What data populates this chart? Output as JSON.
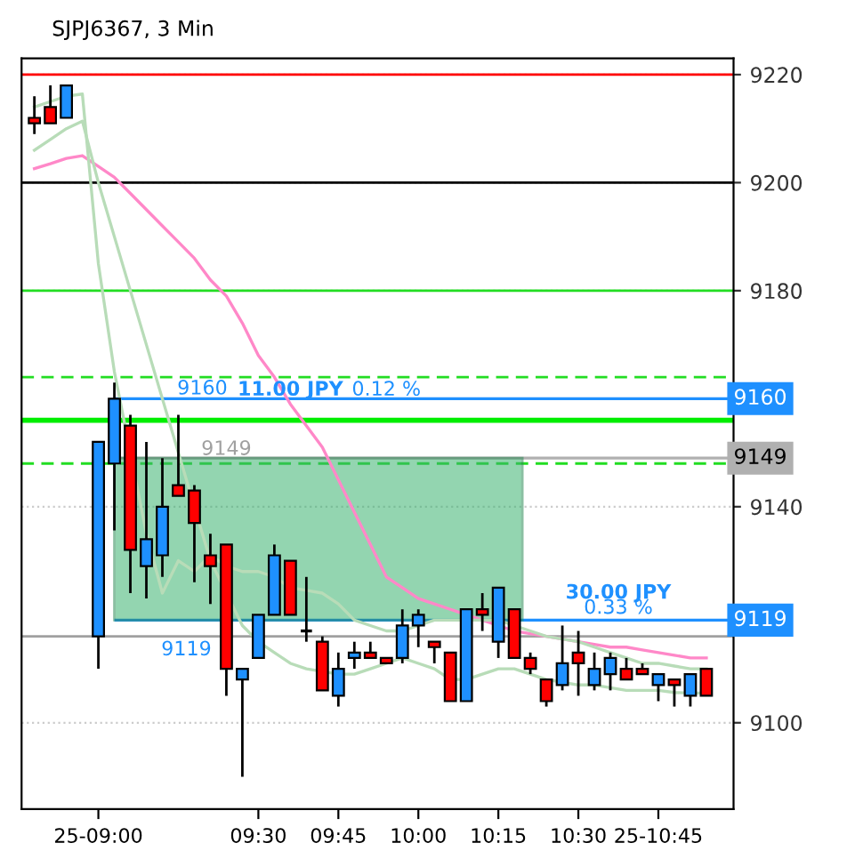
{
  "chart_data": {
    "type": "candlestick",
    "title": "SJPJ6367, 3 Min",
    "categories": [
      null,
      null,
      null,
      null,
      "25-09:00",
      null,
      null,
      null,
      null,
      null,
      null,
      null,
      null,
      null,
      "09:30",
      null,
      null,
      null,
      null,
      "09:45",
      null,
      null,
      null,
      null,
      "10:00",
      null,
      null,
      null,
      null,
      "10:15",
      null,
      null,
      null,
      null,
      "10:30",
      null,
      null,
      null,
      null,
      "25-10:45",
      null,
      null,
      null
    ],
    "ohlc": [
      [
        9212,
        9216,
        9209,
        9211
      ],
      [
        9214,
        9218,
        9211,
        9211
      ],
      [
        9212,
        9218,
        9212,
        9218
      ],
      null,
      [
        9116,
        9152,
        9110,
        9152
      ],
      [
        9148,
        9163,
        9135.6,
        9160
      ],
      [
        9155,
        9157,
        9124,
        9132
      ],
      [
        9129,
        9152,
        9123,
        9134
      ],
      [
        9131,
        9149,
        9127,
        9140
      ],
      [
        9144,
        9157,
        9142,
        9142
      ],
      [
        9143,
        9144,
        9126,
        9137
      ],
      [
        9131,
        9135,
        9122,
        9129
      ],
      [
        9133,
        9133,
        9105,
        9110
      ],
      [
        9108,
        9110,
        9090,
        9110
      ],
      [
        9112,
        9120,
        9112,
        9120
      ],
      [
        9120,
        9133,
        9120,
        9131
      ],
      [
        9130,
        9130,
        9120,
        9120
      ],
      [
        9117,
        9127,
        9115,
        9117
      ],
      [
        9115,
        9116,
        9106,
        9106
      ],
      [
        9105,
        9113,
        9103,
        9110
      ],
      [
        9112,
        9115,
        9110,
        9113
      ],
      [
        9113,
        9115,
        9112,
        9112
      ],
      [
        9112,
        9112,
        9111,
        9111
      ],
      [
        9112,
        9121,
        9111,
        9118
      ],
      [
        9118,
        9121,
        9114,
        9120
      ],
      [
        9115,
        9115,
        9111,
        9114
      ],
      [
        9113,
        9113,
        9104,
        9104
      ],
      [
        9104,
        9121,
        9104,
        9121
      ],
      [
        9121,
        9124,
        9117,
        9120
      ],
      [
        9115,
        9125,
        9112,
        9125
      ],
      [
        9121,
        9121,
        9112,
        9112
      ],
      [
        9112,
        9113,
        9109,
        9110
      ],
      [
        9108,
        9108,
        9103,
        9104
      ],
      [
        9107,
        9118,
        9106,
        9111
      ],
      [
        9113,
        9117,
        9105,
        9111
      ],
      [
        9107,
        9113,
        9106,
        9110
      ],
      [
        9109,
        9113,
        9106,
        9112
      ],
      [
        9110,
        9112,
        9108,
        9108
      ],
      [
        9110,
        9111,
        9109,
        9109
      ],
      [
        9107,
        9109,
        9104,
        9109
      ],
      [
        9108,
        9108,
        9103,
        9107
      ],
      [
        9105,
        9109,
        9103,
        9109
      ],
      [
        9110,
        9110,
        9105,
        9105
      ]
    ],
    "colors": [
      "#ff0000",
      "#ff0000",
      "#1e90ff",
      null,
      "#1e90ff",
      "#1e90ff",
      "#ff0000",
      "#1e90ff",
      "#1e90ff",
      "#ff0000",
      "#ff0000",
      "#ff0000",
      "#ff0000",
      "#1e90ff",
      "#1e90ff",
      "#1e90ff",
      "#ff0000",
      "#000000",
      "#ff0000",
      "#1e90ff",
      "#1e90ff",
      "#ff0000",
      "#ff0000",
      "#1e90ff",
      "#1e90ff",
      "#ff0000",
      "#ff0000",
      "#1e90ff",
      "#ff0000",
      "#1e90ff",
      "#ff0000",
      "#ff0000",
      "#ff0000",
      "#1e90ff",
      "#ff0000",
      "#1e90ff",
      "#1e90ff",
      "#ff0000",
      "#ff0000",
      "#1e90ff",
      "#ff0000",
      "#1e90ff",
      "#ff0000"
    ],
    "series": [
      {
        "type": "line",
        "color": "#ff88c8",
        "values": [
          9202.6,
          9203.5,
          9204.5,
          9205,
          9203,
          9201,
          9198,
          9195,
          9192,
          9189,
          9186,
          9182,
          9179,
          9174,
          9168,
          9164,
          9159,
          9155,
          9151,
          9145,
          9139,
          9133,
          9127,
          9125,
          9123,
          9122,
          9121,
          9120,
          9119,
          9118,
          9117,
          9116.5,
          9116,
          9115.5,
          9115,
          9114.5,
          9114,
          9114,
          9113.5,
          9113,
          9112.5,
          9112,
          9112
        ]
      },
      {
        "type": "line",
        "color": "#b8dcb8",
        "values": [
          9214,
          9215,
          9216,
          9216.4,
          9185,
          9165,
          9150,
          9135,
          9124,
          9130,
          9128,
          9131,
          9129,
          9128,
          9128,
          9127,
          9125,
          9124.5,
          9124,
          9122,
          9119,
          9118,
          9117,
          9117,
          9118,
          9119,
          9119,
          9119,
          9119,
          9119,
          9118,
          9117,
          9116,
          9115.5,
          9115,
          9114,
          9113,
          9112,
          9111,
          9111,
          9110.5,
          9110,
          9110
        ]
      },
      {
        "type": "line",
        "color": "#b8dcb8",
        "values": [
          9206,
          9208,
          9210,
          9211.4,
          9200,
          9190,
          9180,
          9170,
          9160,
          9150,
          9140,
          9130,
          9124,
          9118,
          9115,
          9113,
          9111,
          9110,
          9109.5,
          9109,
          9109,
          9110,
          9111,
          9112,
          9111,
          9110,
          9108,
          9108,
          9109,
          9110,
          9110,
          9109,
          9108,
          9107.5,
          9107,
          9107,
          9106.5,
          9106,
          9106,
          9106,
          9105.6,
          9105.5,
          9105.5
        ]
      }
    ],
    "ylim": [
      9084,
      9223
    ],
    "yticks": [
      9100,
      9140,
      9180,
      9200,
      9220
    ],
    "grid": "y",
    "ref_lines": [
      {
        "axis": "y",
        "value": 9220,
        "color": "#ff0000"
      },
      {
        "axis": "y",
        "value": 9200,
        "color": "#000000"
      },
      {
        "axis": "y",
        "value": 9180,
        "color": "#22dd22"
      },
      {
        "axis": "y",
        "value": 9164,
        "color": "#22dd22",
        "line_style": "dashed"
      },
      {
        "axis": "y",
        "value": 9156,
        "color": "#00ee00"
      },
      {
        "axis": "y",
        "value": 9148,
        "color": "#22dd22",
        "line_style": "dashed"
      },
      {
        "axis": "y",
        "value": 9116,
        "color": "#a0a0a0"
      },
      {
        "axis": "y",
        "value": 9160,
        "label": "9160",
        "color": "#1e90ff"
      },
      {
        "axis": "y",
        "value": 9149,
        "label": "9149",
        "color": "#b0b0b0"
      },
      {
        "axis": "y",
        "value": 9119,
        "label": "9119",
        "color": "#1e90ff"
      }
    ],
    "annotations": [
      {
        "text": "11.00 JPY",
        "y": 9160
      },
      {
        "text": "0.12 %",
        "y": 9160
      },
      {
        "text": "9160",
        "y": 9160
      },
      {
        "text": "9149",
        "y": 9149
      },
      {
        "text": "9119",
        "y": 9119
      },
      {
        "text": "30.00 JPY",
        "y": 9119
      },
      {
        "text": "0.33 %",
        "y": 9119
      }
    ]
  }
}
